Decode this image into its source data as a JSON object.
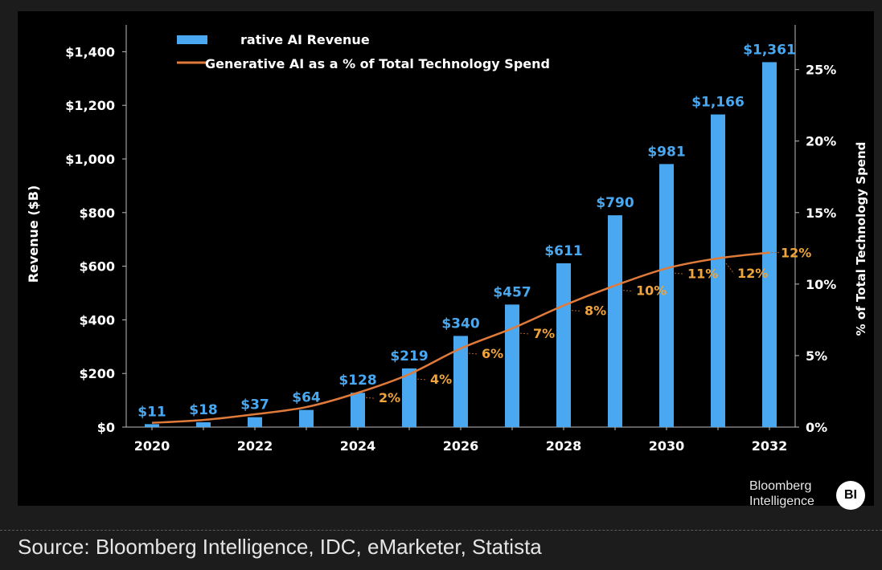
{
  "chart_data": {
    "type": "bar",
    "title": "",
    "categories": [
      "2020",
      "2021",
      "2022",
      "2023",
      "2024",
      "2025",
      "2026",
      "2027",
      "2028",
      "2029",
      "2030",
      "2031",
      "2032"
    ],
    "x_tick_labels": [
      "2020",
      "2022",
      "2024",
      "2026",
      "2028",
      "2030",
      "2032"
    ],
    "series": [
      {
        "name": "Generative AI Revenue",
        "legend_label": "rative AI Revenue",
        "type": "bar",
        "axis": "left",
        "color": "#4aa8f0",
        "values": [
          11,
          18,
          37,
          64,
          128,
          219,
          340,
          457,
          611,
          790,
          981,
          1166,
          1361
        ],
        "labels": [
          "$11",
          "$18",
          "$37",
          "$64",
          "$128",
          "$219",
          "$340",
          "$457",
          "$611",
          "$790",
          "$981",
          "$1,166",
          "$1,361"
        ]
      },
      {
        "name": "Generative AI as a % of Total Technology Spend",
        "type": "line",
        "axis": "right",
        "color": "#e07a3a",
        "values": [
          0.3,
          0.5,
          0.9,
          1.4,
          2.4,
          3.7,
          5.5,
          6.9,
          8.5,
          9.9,
          11.1,
          11.8,
          12.2
        ],
        "labels": [
          "",
          "",
          "",
          "",
          "2%",
          "4%",
          "6%",
          "7%",
          "8%",
          "10%",
          "11%",
          "12%",
          "12%"
        ],
        "label_color": "#f0a43c"
      }
    ],
    "ylabel": "Revenue ($B)",
    "ylim": [
      0,
      1500
    ],
    "y_ticks": [
      0,
      200,
      400,
      600,
      800,
      1000,
      1200,
      1400
    ],
    "y_tick_labels": [
      "$0",
      "$200",
      "$400",
      "$600",
      "$800",
      "$1,000",
      "$1,200",
      "$1,400"
    ],
    "y2label": "% of Total Technology Spend",
    "y2lim": [
      0,
      28.125
    ],
    "y2_ticks": [
      0,
      5,
      10,
      15,
      20,
      25
    ],
    "y2_tick_labels": [
      "0%",
      "5%",
      "10%",
      "15%",
      "20%",
      "25%"
    ],
    "grid": false,
    "legend_position": "top-left"
  },
  "branding": {
    "line1": "Bloomberg",
    "line2": "Intelligence",
    "badge": "BI"
  },
  "source": "Source: Bloomberg Intelligence, IDC, eMarketer, Statista"
}
